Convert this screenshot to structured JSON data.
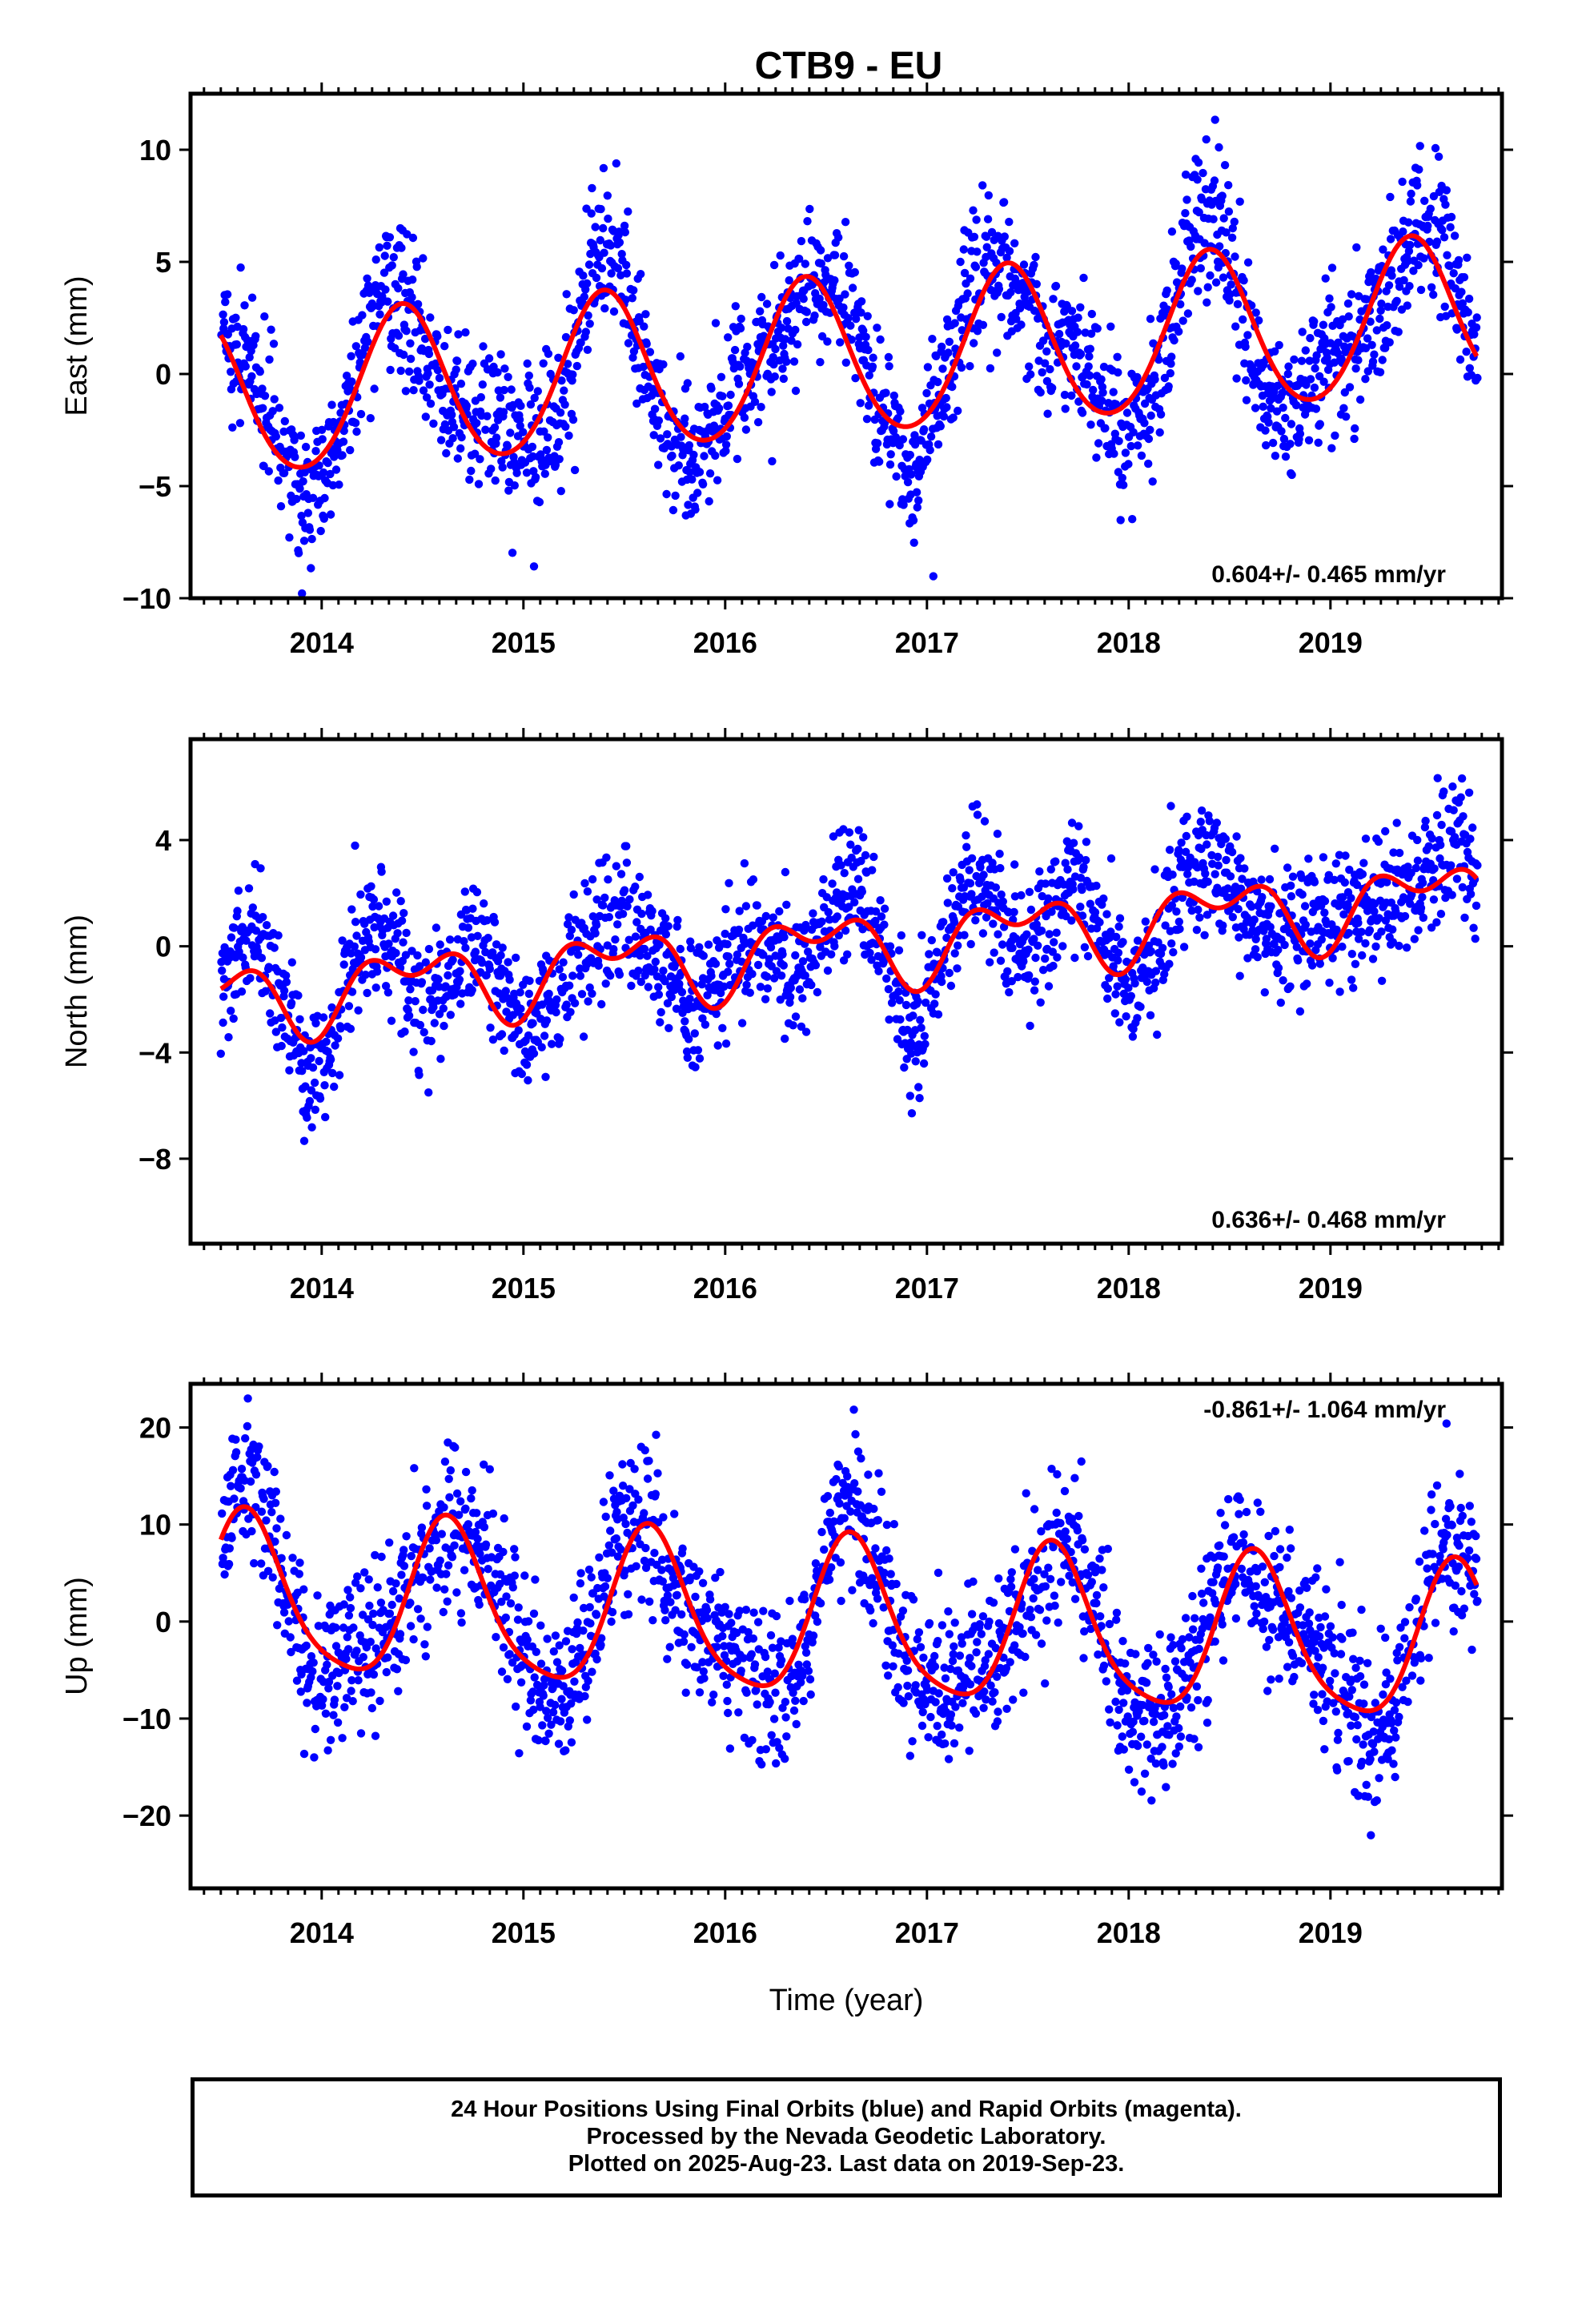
{
  "title": "CTB9 - EU",
  "caption": {
    "line1": "24 Hour Positions Using Final Orbits (blue) and Rapid Orbits (magenta).",
    "line2": "Processed by the Nevada Geodetic Laboratory.",
    "line3": "Plotted on 2025-Aug-23. Last data on 2019-Sep-23."
  },
  "colors": {
    "observations": "#0000ff",
    "model": "#ff0000"
  },
  "chart_data": [
    {
      "type": "scatter",
      "title": "CTB9 - EU",
      "xlabel": "",
      "ylabel": "East (mm)",
      "xlim": [
        2013.35,
        2019.85
      ],
      "ylim": [
        -10,
        12.5
      ],
      "xticks": [
        2014,
        2015,
        2016,
        2017,
        2018,
        2019
      ],
      "yticks": [
        -10,
        -5,
        0,
        5,
        10
      ],
      "rate_annotation": "0.604+/- 0.465 mm/yr",
      "rate_position": "bottom-right",
      "series": [],
      "trend": {
        "rate_mm_yr": 0.604,
        "intercept_mm": -1.2,
        "ref_year": 2013.5,
        "annual_amp_mm": 3.5,
        "annual_peak": 0.4,
        "semiannual_amp_mm": 0.3,
        "semiannual_peak": 0.4
      },
      "scatter": {
        "noise_mm": 1.6,
        "extra_residual_amp_mm": 1.6
      },
      "time_span": [
        2013.5,
        2019.73
      ]
    },
    {
      "type": "scatter",
      "title": "",
      "xlabel": "",
      "ylabel": "North (mm)",
      "xlim": [
        2013.35,
        2019.85
      ],
      "ylim": [
        -11.2,
        7.8
      ],
      "xticks": [
        2014,
        2015,
        2016,
        2017,
        2018,
        2019
      ],
      "yticks": [
        -8,
        -4,
        0,
        4
      ],
      "rate_annotation": "0.636+/- 0.468 mm/yr",
      "rate_position": "bottom-right",
      "series": [],
      "trend": {
        "rate_mm_yr": 0.636,
        "intercept_mm": -2.0,
        "ref_year": 2013.5,
        "annual_amp_mm": 1.1,
        "annual_peak": 0.45,
        "semiannual_amp_mm": 0.8,
        "semiannual_peak": 0.2
      },
      "scatter": {
        "noise_mm": 1.2,
        "extra_residual_amp_mm": 1.3
      },
      "time_span": [
        2013.5,
        2019.73
      ]
    },
    {
      "type": "scatter",
      "title": "",
      "xlabel": "Time (year)",
      "ylabel": "Up (mm)",
      "xlim": [
        2013.35,
        2019.85
      ],
      "ylim": [
        -27.5,
        24.5
      ],
      "xticks": [
        2014,
        2015,
        2016,
        2017,
        2018,
        2019
      ],
      "yticks": [
        -20,
        -10,
        0,
        10,
        20
      ],
      "rate_annotation": "-0.861+/- 1.064 mm/yr",
      "rate_position": "top-right",
      "series": [],
      "trend": {
        "rate_mm_yr": -0.861,
        "intercept_mm": 2.5,
        "ref_year": 2013.5,
        "annual_amp_mm": 8.0,
        "annual_peak": 0.63,
        "semiannual_amp_mm": 1.5,
        "semiannual_peak": 0.6
      },
      "scatter": {
        "noise_mm": 4.0,
        "extra_residual_amp_mm": 2.5
      },
      "time_span": [
        2013.5,
        2019.73
      ]
    }
  ]
}
